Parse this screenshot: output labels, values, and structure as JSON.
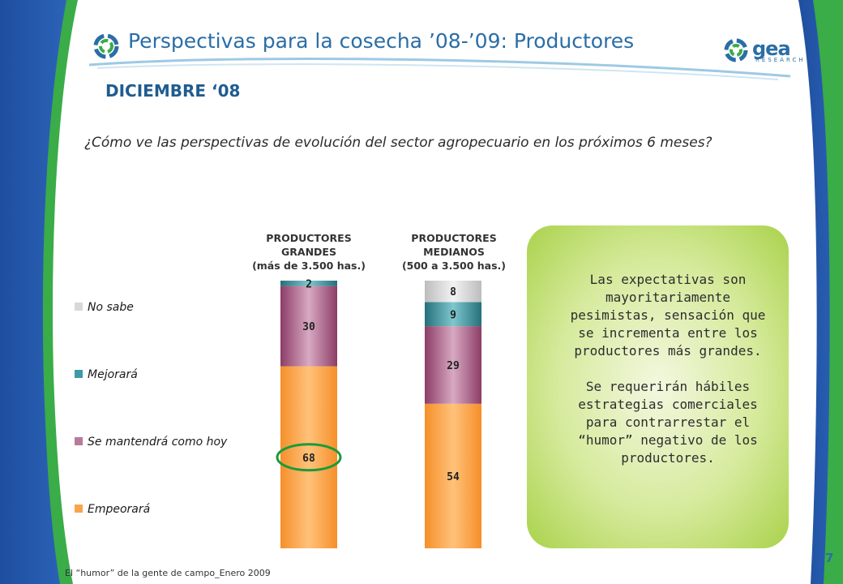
{
  "header": {
    "title": "Perspectivas para la cosecha ’08-’09: Productores",
    "subtitle": "DICIEMBRE ‘08",
    "question": "¿Cómo ve las perspectivas de evolución del sector agropecuario en los próximos 6 meses?",
    "logo_text": "gea",
    "logo_sub": "RESEARCH",
    "logo_icon": "swirl-logo-icon"
  },
  "colors": {
    "no_sabe": "#d8d8d8",
    "mejorara": "#3e9aa6",
    "se_mantendra": "#b87a9a",
    "empeorara": "#f9a44b",
    "highlight": "#1a9b3a",
    "title": "#2a6ea6"
  },
  "chart_data": {
    "type": "bar",
    "stacked": true,
    "categories": [
      "PRODUCTORES GRANDES (más de 3.500 has.)",
      "PRODUCTORES MEDIANOS (500 a 3.500 has.)"
    ],
    "category_lines": [
      [
        "PRODUCTORES",
        "GRANDES",
        "(más de 3.500 has.)"
      ],
      [
        "PRODUCTORES",
        "MEDIANOS",
        "(500 a 3.500 has.)"
      ]
    ],
    "series": [
      {
        "name": "Empeorará",
        "values": [
          68,
          54
        ]
      },
      {
        "name": "Se mantendrá como hoy",
        "values": [
          30,
          29
        ]
      },
      {
        "name": "Mejorará",
        "values": [
          2,
          9
        ]
      },
      {
        "name": "No sabe",
        "values": [
          0,
          8
        ]
      }
    ],
    "legend_order": [
      "No sabe",
      "Mejorará",
      "Se mantendrá como hoy",
      "Empeorará"
    ],
    "highlighted": {
      "series": "Empeorará",
      "category_index": 0,
      "value": 68
    },
    "ylim": [
      0,
      100
    ],
    "legend_position": "left"
  },
  "callout": {
    "paragraph1": "Las expectativas son mayoritariamente pesimistas, sensación que se incrementa entre los productores más grandes.",
    "paragraph2": "Se requerirán hábiles estrategias comerciales para contrarrestar el “humor” negativo de los productores."
  },
  "footer": {
    "text": "El “humor” de la gente de campo_Enero 2009",
    "page_number": "7"
  }
}
